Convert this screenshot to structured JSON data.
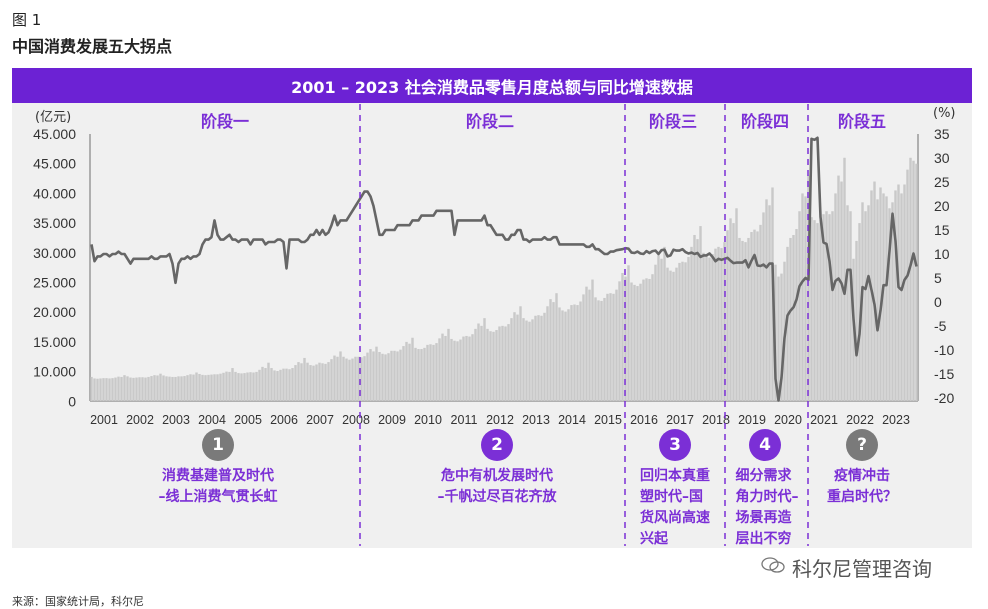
{
  "figure_label": "图 1",
  "figure_title": "中国消费发展五大拐点",
  "source": "来源：国家统计局，科尔尼",
  "watermark": "科尔尼管理咨询",
  "colors": {
    "accent": "#6c22d4",
    "phase_text": "#7b2fd6",
    "bars": "#c9c9c9",
    "line": "#666666",
    "neutral_circle": "#7a7a7a",
    "panel": "#f0f0f0"
  },
  "phases": [
    {
      "label": "阶段一",
      "badge": "1",
      "badge_color": "#7a7a7a",
      "description": "消费基建普及时代\n–线上消费气贯长虹"
    },
    {
      "label": "阶段二",
      "badge": "2",
      "badge_color": "#7b2fd6",
      "description": "危中有机发展时代\n–千帆过尽百花齐放"
    },
    {
      "label": "阶段三",
      "badge": "3",
      "badge_color": "#7b2fd6",
      "description": "回归本真重\n塑时代–国\n货风尚高速\n兴起"
    },
    {
      "label": "阶段四",
      "badge": "4",
      "badge_color": "#7b2fd6",
      "description": "细分需求\n角力时代–\n场景再造\n层出不穷"
    },
    {
      "label": "阶段五",
      "badge": "?",
      "badge_color": "#7a7a7a",
      "description": "疫情冲击\n重启时代？"
    }
  ],
  "chart_data": {
    "type": "bar+line",
    "title": "2001 – 2023 社会消费品零售月度总额与同比增速数据",
    "left_axis_unit": "(亿元)",
    "right_axis_unit": "(%)",
    "left_tick_labels": [
      "45.000",
      "45.000",
      "40.000",
      "35.000",
      "30.000",
      "25.000",
      "20.000",
      "15.000",
      "10.000",
      "0"
    ],
    "right_tick_labels": [
      "35",
      "30",
      "25",
      "20",
      "15",
      "10",
      "5",
      "0",
      "-5",
      "-10",
      "-15",
      "-20"
    ],
    "right_ylim": [
      -20,
      35
    ],
    "x_tick_labels": [
      "2001",
      "2002",
      "2003",
      "2004",
      "2005",
      "2006",
      "2007",
      "2008",
      "2009",
      "2010",
      "2011",
      "2012",
      "2013",
      "2014",
      "2015",
      "2016",
      "2017",
      "2018",
      "2019",
      "2020",
      "2021",
      "2022",
      "2023"
    ],
    "grid": false,
    "series": [
      {
        "kind": "bar",
        "axis": "left",
        "values_by_year": [
          [
            8200,
            7700,
            7600,
            7700,
            7800,
            7800,
            7700,
            7800,
            8000,
            8300,
            8200,
            8800
          ],
          [
            8400,
            8000,
            7900,
            8000,
            8100,
            8100,
            8000,
            8200,
            8500,
            8800,
            8700,
            9300
          ],
          [
            8700,
            8400,
            8300,
            8200,
            8200,
            8400,
            8400,
            8500,
            8800,
            9100,
            9000,
            9700
          ],
          [
            9200,
            8900,
            8800,
            8900,
            9000,
            9100,
            9100,
            9300,
            9600,
            10000,
            9900,
            10600
          ],
          [
            9900,
            9500,
            9400,
            9500,
            9700,
            9800,
            9700,
            9900,
            10300,
            10800,
            10600,
            11500
          ],
          [
            10600,
            10200,
            10100,
            10300,
            10500,
            10500,
            10400,
            10600,
            11100,
            11600,
            11400,
            12300
          ],
          [
            11500,
            11100,
            11000,
            11200,
            11500,
            11400,
            11300,
            11600,
            12100,
            12700,
            12500,
            13400
          ],
          [
            12500,
            12200,
            12000,
            12200,
            12500,
            12500,
            12400,
            12600,
            13200,
            13800,
            13400,
            14200
          ],
          [
            13300,
            13000,
            12900,
            13100,
            13500,
            13500,
            13400,
            13700,
            14300,
            15000,
            14700,
            15700
          ],
          [
            14000,
            13800,
            13800,
            14000,
            14500,
            14600,
            14500,
            14800,
            15600,
            16400,
            16000,
            17200
          ],
          [
            15500,
            15200,
            15100,
            15400,
            15900,
            16000,
            15900,
            16300,
            17200,
            18100,
            17700,
            19000
          ],
          [
            17200,
            16800,
            16700,
            17000,
            17600,
            17700,
            17600,
            18000,
            19000,
            20000,
            19600,
            21000
          ],
          [
            19000,
            18600,
            18400,
            18800,
            19400,
            19500,
            19400,
            19900,
            21000,
            22200,
            21700,
            23200
          ],
          [
            20800,
            20300,
            20100,
            20500,
            21200,
            21300,
            21200,
            21800,
            23000,
            24300,
            23800,
            25500
          ],
          [
            22500,
            22000,
            21900,
            22400,
            23100,
            23200,
            23100,
            23800,
            25200,
            26600,
            26000,
            27900
          ],
          [
            25000,
            24600,
            24400,
            24800,
            25500,
            25700,
            25600,
            26400,
            28000,
            29600,
            29000,
            31000
          ],
          [
            27500,
            27000,
            26800,
            27500,
            28300,
            28500,
            28400,
            29300,
            31000,
            33000,
            32300,
            34500
          ],
          [
            30000,
            29500,
            29200,
            29800,
            30700,
            31000,
            30800,
            31800,
            33800,
            35800,
            35000,
            37500
          ],
          [
            32500,
            32000,
            31800,
            32500,
            33500,
            33900,
            33600,
            34700,
            36800,
            39000,
            38000,
            41000
          ],
          [
            28000,
            26000,
            26500,
            28500,
            31000,
            32500,
            33000,
            34000,
            37000,
            40000,
            39500,
            43000
          ],
          [
            36000,
            35500,
            35000,
            35500,
            36500,
            37000,
            36500,
            37000,
            40000,
            43000,
            42000,
            46000
          ],
          [
            38000,
            37000,
            29000,
            32000,
            35000,
            38500,
            37000,
            38000,
            40500,
            42000,
            39000,
            41000
          ],
          [
            40000,
            39500,
            37500,
            38500,
            40500,
            41500,
            40000,
            41500,
            44000,
            46000,
            45500,
            45000
          ]
        ]
      },
      {
        "kind": "line",
        "axis": "right",
        "values_by_year": [
          [
            12,
            8.5,
            9.5,
            9.5,
            10,
            10,
            9.5,
            10,
            10,
            10.5,
            10,
            10
          ],
          [
            9,
            8,
            9,
            9,
            9,
            9,
            9,
            9,
            9.5,
            9,
            9,
            9.5
          ],
          [
            9.5,
            9.5,
            10,
            8,
            4,
            8,
            9,
            9,
            9.5,
            9,
            9.5,
            9.5
          ],
          [
            10,
            12,
            13,
            13,
            13.5,
            17,
            14,
            13,
            13,
            13.5,
            14,
            13
          ],
          [
            13,
            12.5,
            13,
            13,
            13,
            12,
            13,
            13,
            13,
            13,
            12,
            12.5
          ],
          [
            12.5,
            12.5,
            13,
            13,
            12.5,
            7,
            13,
            13,
            13,
            13,
            12.5,
            12.5
          ],
          [
            13,
            14,
            14,
            15,
            14,
            15,
            14,
            14.5,
            16,
            18,
            16,
            17
          ],
          [
            17,
            17,
            18,
            19,
            20,
            21,
            22,
            23,
            23,
            22,
            20,
            17
          ],
          [
            14,
            14,
            15,
            15,
            15,
            15,
            16,
            16,
            16,
            16,
            16,
            17
          ],
          [
            17,
            17,
            18,
            18,
            18,
            18,
            18,
            19,
            19,
            19,
            19,
            19
          ],
          [
            19,
            14,
            17,
            17,
            17,
            17,
            17,
            17,
            17,
            17,
            17,
            18
          ],
          [
            16,
            16,
            15,
            14,
            14,
            14,
            13,
            13,
            14,
            14,
            15,
            15
          ],
          [
            13,
            13,
            12.5,
            13,
            13,
            13,
            13,
            13.5,
            13,
            13,
            13.5,
            13.5
          ],
          [
            12,
            12,
            12,
            12,
            12,
            12,
            12,
            12,
            12,
            11.5,
            11.5,
            12
          ],
          [
            11,
            11,
            10.5,
            10,
            10,
            10.5,
            10.5,
            10.8,
            10.9,
            11,
            11.2,
            11.1
          ],
          [
            10.3,
            10.2,
            10.5,
            10.1,
            10,
            10.6,
            10.2,
            10.6,
            10.7,
            10,
            10.8,
            10.9
          ],
          [
            9.5,
            9.7,
            10.9,
            10.7,
            10.7,
            11,
            10.4,
            10.1,
            10.3,
            10,
            10.2,
            9.4
          ],
          [
            9.7,
            9.7,
            10.1,
            9.4,
            8.5,
            9,
            8.8,
            9,
            9.2,
            8.6,
            8.1,
            8.2
          ],
          [
            8.2,
            8.2,
            8.7,
            7.2,
            8.6,
            9.8,
            7.6,
            7.5,
            7.8,
            7.2,
            8,
            8
          ],
          [
            -16,
            -20.5,
            -15.8,
            -7.5,
            -2.8,
            -1.8,
            -1.1,
            0.5,
            3.3,
            4.3,
            5,
            4.6
          ],
          [
            34,
            33.8,
            34.2,
            17.7,
            12.4,
            12.1,
            8.5,
            2.5,
            4.4,
            4.9,
            3.9,
            1.7
          ],
          [
            6.7,
            6.7,
            -3.5,
            -11.1,
            -6.7,
            3.1,
            2.7,
            5.4,
            2.5,
            -0.5,
            -5.9,
            -1.8
          ],
          [
            3.5,
            3.5,
            10.6,
            18.4,
            12.7,
            3.1,
            2.5,
            4.6,
            5.5,
            7.6,
            10.1,
            7.4
          ]
        ]
      }
    ]
  }
}
